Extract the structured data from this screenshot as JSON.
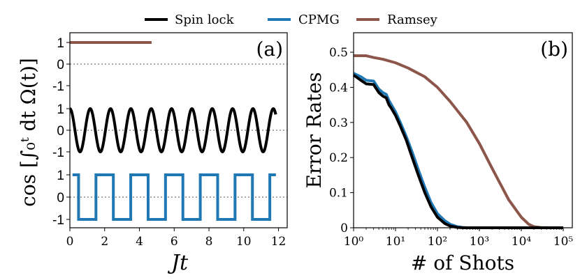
{
  "legend": {
    "items": [
      {
        "label": "Spin lock",
        "color": "#000000"
      },
      {
        "label": "CPMG",
        "color": "#1f77b4"
      },
      {
        "label": "Ramsey",
        "color": "#8c564b"
      }
    ]
  },
  "chart_data": [
    {
      "type": "line",
      "panel_label": "(a)",
      "xlabel": "Jt",
      "ylabel": "cos [∫₀ᵗ dt Ω(t)]",
      "xlim": [
        0,
        12.5
      ],
      "x_ticks": [
        "0",
        "2",
        "4",
        "6",
        "8",
        "10",
        "12"
      ],
      "y_tick_labels": [
        "1",
        "0",
        "-1",
        "1",
        "0",
        "-1",
        "1",
        "0",
        "-1"
      ],
      "grid": false,
      "reference_lines_at_zero": true,
      "series": [
        {
          "name": "Ramsey",
          "color": "#8c564b",
          "x": [
            0,
            4.7
          ],
          "y": [
            1,
            1
          ]
        },
        {
          "name": "Spin lock",
          "color": "#000000",
          "function": "cos(2*pi*x/1.17)",
          "x_range": [
            0,
            11.85
          ]
        },
        {
          "name": "CPMG",
          "color": "#1f77b4",
          "x_switch": [
            0.5,
            1.5,
            2.5,
            3.5,
            4.5,
            5.5,
            6.5,
            7.5,
            8.5,
            9.5,
            10.5,
            11.5
          ],
          "x_range": [
            0.15,
            11.85
          ],
          "levels": [
            1,
            -1
          ]
        }
      ]
    },
    {
      "type": "line",
      "panel_label": "(b)",
      "xlabel": "# of Shots",
      "ylabel": "Error Rates",
      "xscale": "log",
      "xlim": [
        1,
        100000
      ],
      "ylim": [
        0,
        0.55
      ],
      "x_tick_labels": [
        "10⁰",
        "10¹",
        "10²",
        "10³",
        "10⁴",
        "10⁵"
      ],
      "y_tick_labels": [
        "0",
        "0.1",
        "0.2",
        "0.3",
        "0.4",
        "0.5"
      ],
      "grid": false,
      "series": [
        {
          "name": "Spin lock",
          "color": "#000000",
          "x": [
            1,
            1.5,
            2,
            3,
            4,
            5,
            6,
            7,
            8,
            10,
            13,
            18,
            25,
            35,
            50,
            70,
            100,
            150,
            200,
            300,
            400,
            1000,
            100000
          ],
          "y": [
            0.435,
            0.42,
            0.41,
            0.408,
            0.385,
            0.375,
            0.37,
            0.35,
            0.34,
            0.32,
            0.29,
            0.25,
            0.2,
            0.15,
            0.1,
            0.06,
            0.03,
            0.012,
            0.005,
            0.001,
            0,
            0,
            0
          ]
        },
        {
          "name": "CPMG",
          "color": "#1f77b4",
          "x": [
            1,
            1.5,
            2,
            3,
            4,
            5,
            6,
            7,
            8,
            10,
            13,
            18,
            25,
            35,
            50,
            70,
            100,
            150,
            200,
            300,
            400,
            500,
            1000,
            100000
          ],
          "y": [
            0.44,
            0.43,
            0.42,
            0.418,
            0.395,
            0.385,
            0.38,
            0.362,
            0.35,
            0.33,
            0.3,
            0.26,
            0.215,
            0.165,
            0.115,
            0.072,
            0.04,
            0.02,
            0.01,
            0.003,
            0.001,
            0,
            0,
            0
          ]
        },
        {
          "name": "Ramsey",
          "color": "#8c564b",
          "x": [
            1,
            2,
            3,
            5,
            10,
            20,
            50,
            100,
            200,
            500,
            1000,
            2000,
            3000,
            5000,
            10000,
            15000,
            20000,
            30000,
            50000,
            100000
          ],
          "y": [
            0.49,
            0.49,
            0.485,
            0.48,
            0.47,
            0.455,
            0.43,
            0.4,
            0.36,
            0.3,
            0.24,
            0.17,
            0.13,
            0.08,
            0.03,
            0.01,
            0.003,
            0.0005,
            0,
            0
          ]
        }
      ]
    }
  ]
}
